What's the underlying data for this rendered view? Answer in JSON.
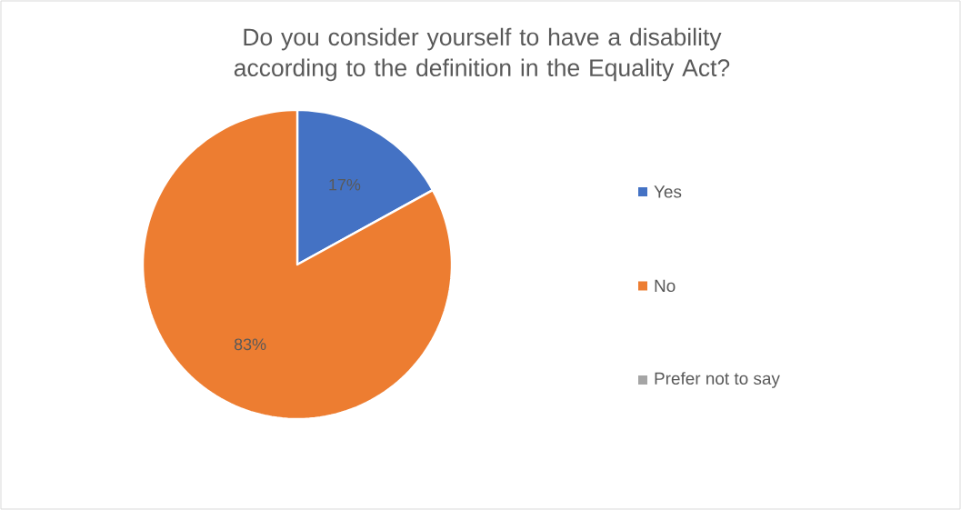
{
  "chart_data": {
    "type": "pie",
    "title": "Do you consider yourself to have a disability according to the definition in the Equality Act?",
    "categories": [
      "Yes",
      "No",
      "Prefer not to say"
    ],
    "values": [
      17,
      83,
      0
    ],
    "colors": [
      "#4472c4",
      "#ed7d31",
      "#a5a5a5"
    ],
    "value_labels": [
      "17%",
      "83%",
      null
    ],
    "legend": "right"
  }
}
